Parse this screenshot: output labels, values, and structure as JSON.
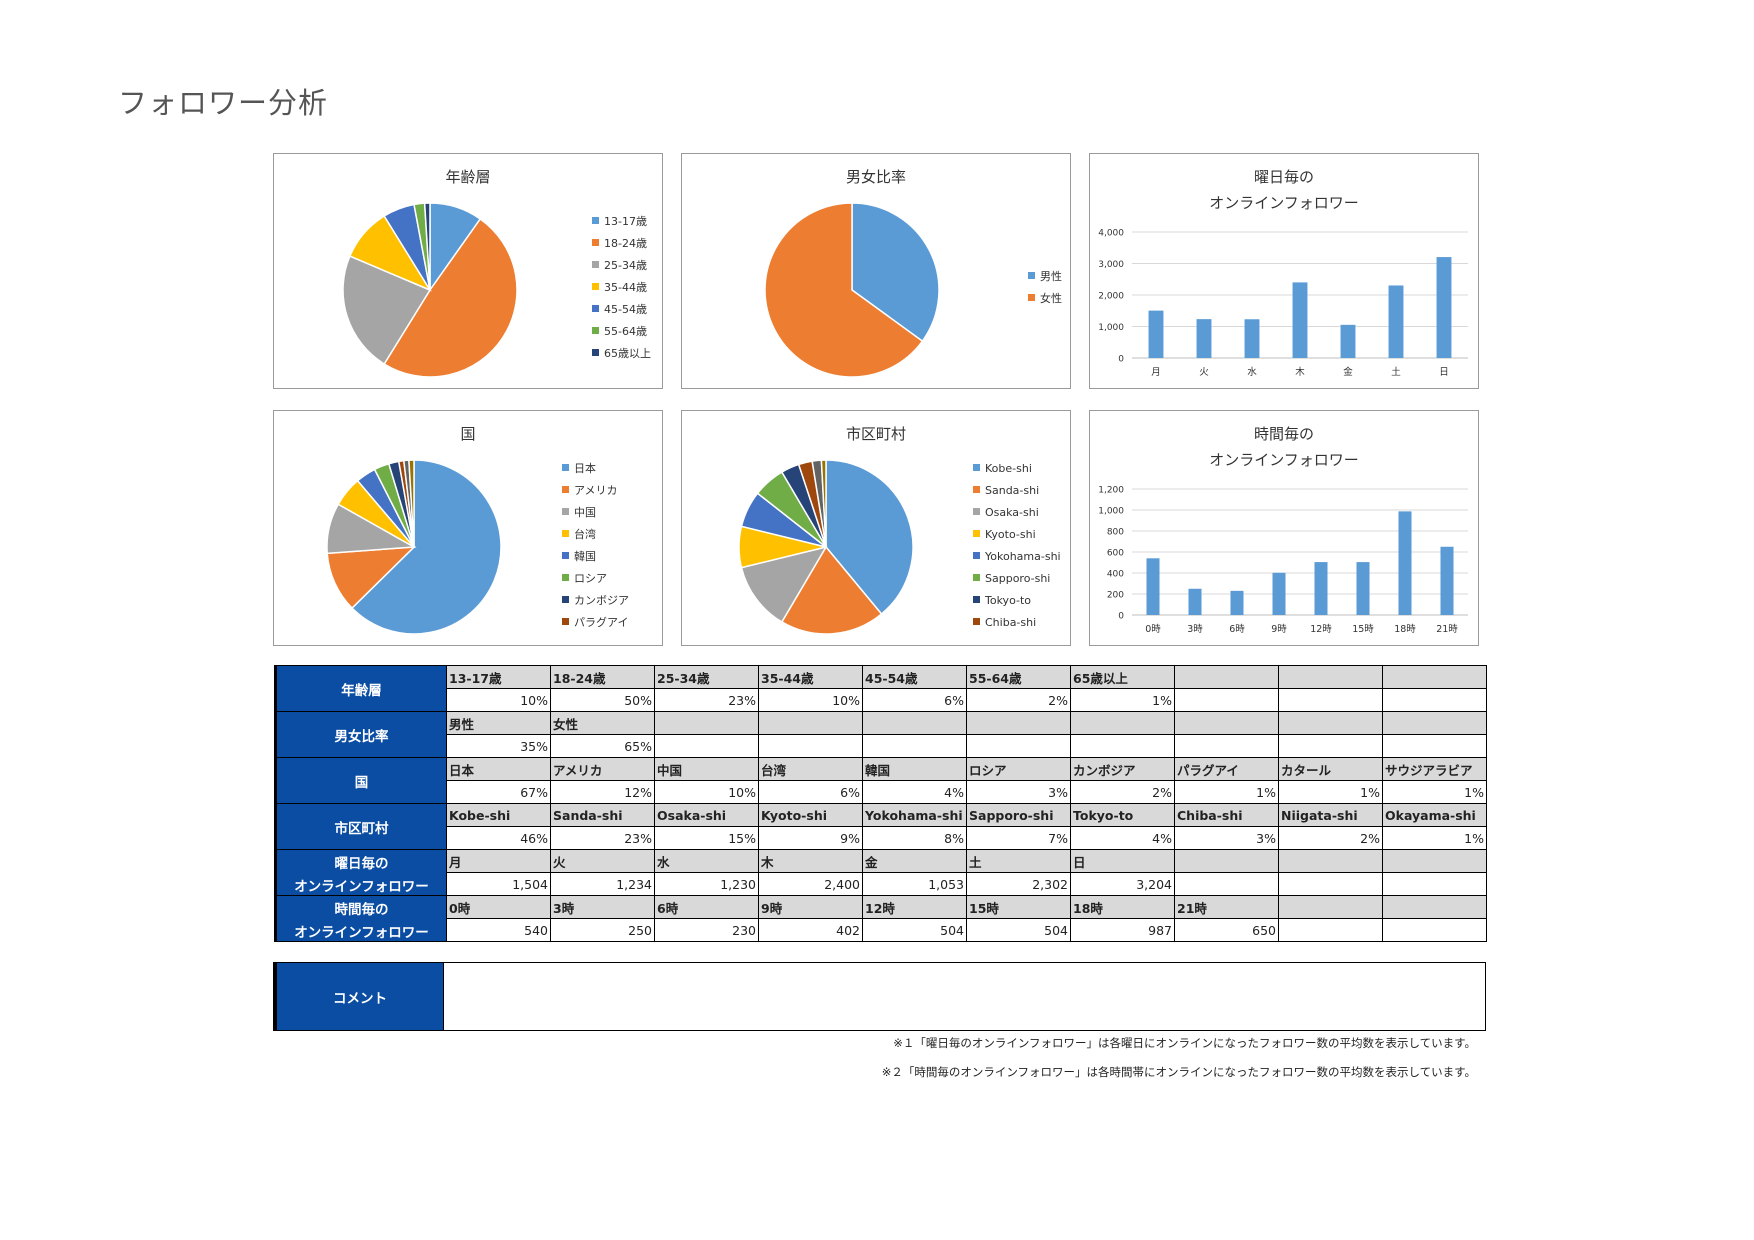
{
  "page": {
    "title": "フォロワー分析"
  },
  "charts": {
    "age": {
      "title": "年齢層"
    },
    "gender": {
      "title": "男女比率"
    },
    "weekday": {
      "title_line1": "曜日毎の",
      "title_line2": "オンラインフォロワー"
    },
    "country": {
      "title": "国"
    },
    "city": {
      "title": "市区町村"
    },
    "hourly": {
      "title_line1": "時間毎の",
      "title_line2": "オンラインフォロワー"
    }
  },
  "chart_data": [
    {
      "id": "age",
      "type": "pie",
      "title": "年齢層",
      "categories": [
        "13-17歳",
        "18-24歳",
        "25-34歳",
        "35-44歳",
        "45-54歳",
        "55-64歳",
        "65歳以上"
      ],
      "values": [
        10,
        50,
        23,
        10,
        6,
        2,
        1
      ],
      "colors": [
        "#5b9bd5",
        "#ed7d31",
        "#a5a5a5",
        "#ffc000",
        "#4472c4",
        "#70ad47",
        "#264478"
      ],
      "legend": "right"
    },
    {
      "id": "gender",
      "type": "pie",
      "title": "男女比率",
      "categories": [
        "男性",
        "女性"
      ],
      "values": [
        35,
        65
      ],
      "colors": [
        "#5b9bd5",
        "#ed7d31"
      ],
      "legend": "right"
    },
    {
      "id": "weekday",
      "type": "bar",
      "title": "曜日毎の オンラインフォロワー",
      "categories": [
        "月",
        "火",
        "水",
        "木",
        "金",
        "土",
        "日"
      ],
      "values": [
        1504,
        1234,
        1230,
        2400,
        1053,
        2302,
        3204
      ],
      "ylim": [
        0,
        4000
      ],
      "yticks": [
        0,
        1000,
        2000,
        3000,
        4000
      ],
      "ytick_labels": [
        "0",
        "1,000",
        "2,000",
        "3,000",
        "4,000"
      ],
      "grid": true,
      "color": "#5b9bd5"
    },
    {
      "id": "country",
      "type": "pie",
      "title": "国",
      "categories": [
        "日本",
        "アメリカ",
        "中国",
        "台湾",
        "韓国",
        "ロシア",
        "カンボジア",
        "パラグアイ",
        "カタール",
        "サウジアラビア"
      ],
      "values": [
        67,
        12,
        10,
        6,
        4,
        3,
        2,
        1,
        1,
        1
      ],
      "colors": [
        "#5b9bd5",
        "#ed7d31",
        "#a5a5a5",
        "#ffc000",
        "#4472c4",
        "#70ad47",
        "#264478",
        "#9e480e",
        "#636363",
        "#997300"
      ],
      "legend_count": 8,
      "legend": "right"
    },
    {
      "id": "city",
      "type": "pie",
      "title": "市区町村",
      "categories": [
        "Kobe-shi",
        "Sanda-shi",
        "Osaka-shi",
        "Kyoto-shi",
        "Yokohama-shi",
        "Sapporo-shi",
        "Tokyo-to",
        "Chiba-shi",
        "Niigata-shi",
        "Okayama-shi"
      ],
      "values": [
        46,
        23,
        15,
        9,
        8,
        7,
        4,
        3,
        2,
        1
      ],
      "colors": [
        "#5b9bd5",
        "#ed7d31",
        "#a5a5a5",
        "#ffc000",
        "#4472c4",
        "#70ad47",
        "#264478",
        "#9e480e",
        "#636363",
        "#997300"
      ],
      "legend_count": 8,
      "legend": "right"
    },
    {
      "id": "hourly",
      "type": "bar",
      "title": "時間毎の オンラインフォロワー",
      "categories": [
        "0時",
        "3時",
        "6時",
        "9時",
        "12時",
        "15時",
        "18時",
        "21時"
      ],
      "values": [
        540,
        250,
        230,
        402,
        504,
        504,
        987,
        650
      ],
      "ylim": [
        0,
        1200
      ],
      "yticks": [
        0,
        200,
        400,
        600,
        800,
        1000,
        1200
      ],
      "ytick_labels": [
        "0",
        "200",
        "400",
        "600",
        "800",
        "1,000",
        "1,200"
      ],
      "grid": true,
      "color": "#5b9bd5"
    }
  ],
  "table": {
    "groups": [
      {
        "header": [
          "年齢層"
        ],
        "labels": [
          "13-17歳",
          "18-24歳",
          "25-34歳",
          "35-44歳",
          "45-54歳",
          "55-64歳",
          "65歳以上",
          "",
          "",
          ""
        ],
        "values": [
          "10%",
          "50%",
          "23%",
          "10%",
          "6%",
          "2%",
          "1%",
          "",
          "",
          ""
        ]
      },
      {
        "header": [
          "男女比率"
        ],
        "labels": [
          "男性",
          "女性",
          "",
          "",
          "",
          "",
          "",
          "",
          "",
          ""
        ],
        "values": [
          "35%",
          "65%",
          "",
          "",
          "",
          "",
          "",
          "",
          "",
          ""
        ]
      },
      {
        "header": [
          "国"
        ],
        "labels": [
          "日本",
          "アメリカ",
          "中国",
          "台湾",
          "韓国",
          "ロシア",
          "カンボジア",
          "パラグアイ",
          "カタール",
          "サウジアラビア"
        ],
        "values": [
          "67%",
          "12%",
          "10%",
          "6%",
          "4%",
          "3%",
          "2%",
          "1%",
          "1%",
          "1%"
        ]
      },
      {
        "header": [
          "市区町村"
        ],
        "labels": [
          "Kobe-shi",
          "Sanda-shi",
          "Osaka-shi",
          "Kyoto-shi",
          "Yokohama-shi",
          "Sapporo-shi",
          "Tokyo-to",
          "Chiba-shi",
          "Niigata-shi",
          "Okayama-shi"
        ],
        "values": [
          "46%",
          "23%",
          "15%",
          "9%",
          "8%",
          "7%",
          "4%",
          "3%",
          "2%",
          "1%"
        ]
      },
      {
        "header": [
          "曜日毎の",
          "オンラインフォロワー"
        ],
        "labels": [
          "月",
          "火",
          "水",
          "木",
          "金",
          "土",
          "日",
          "",
          "",
          ""
        ],
        "values": [
          "1,504",
          "1,234",
          "1,230",
          "2,400",
          "1,053",
          "2,302",
          "3,204",
          "",
          "",
          ""
        ]
      },
      {
        "header": [
          "時間毎の",
          "オンラインフォロワー"
        ],
        "labels": [
          "0時",
          "3時",
          "6時",
          "9時",
          "12時",
          "15時",
          "18時",
          "21時",
          "",
          ""
        ],
        "values": [
          "540",
          "250",
          "230",
          "402",
          "504",
          "504",
          "987",
          "650",
          "",
          ""
        ]
      }
    ]
  },
  "comment": {
    "label": "コメント",
    "value": ""
  },
  "notes": [
    "※１「曜日毎のオンラインフォロワー」は各曜日にオンラインになったフォロワー数の平均数を表示しています。",
    "※２「時間毎のオンラインフォロワー」は各時間帯にオンラインになったフォロワー数の平均数を表示しています。"
  ],
  "colors": {
    "header_blue": "#0b4da2",
    "label_gray": "#d9d9d9",
    "bar_blue": "#5b9bd5"
  }
}
